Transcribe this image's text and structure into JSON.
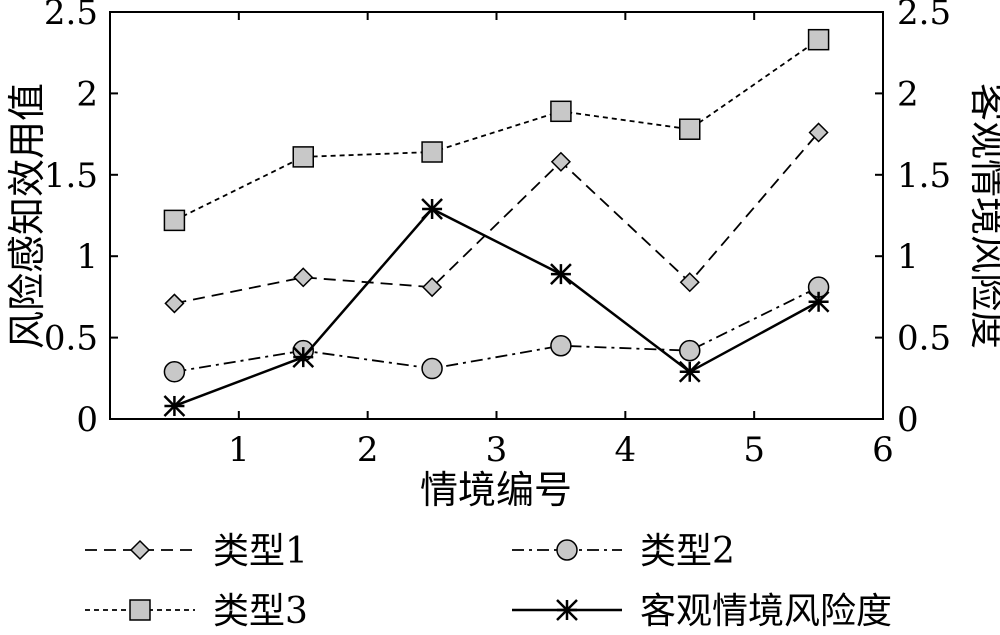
{
  "chart_data": {
    "type": "line",
    "xlabel": "情境编号",
    "ylabel_left": "风险感知效用值",
    "ylabel_right": "客观情境风险度",
    "xlim": [
      0,
      6
    ],
    "ylim": [
      0,
      2.5
    ],
    "x_ticks": [
      "1",
      "2",
      "3",
      "4",
      "5",
      "6"
    ],
    "y_ticks": [
      "0",
      "0.5",
      "1",
      "1.5",
      "2",
      "2.5"
    ],
    "legend_position": "bottom",
    "x": [
      0.5,
      1.5,
      2.5,
      3.5,
      4.5,
      5.5
    ],
    "series": [
      {
        "name": "类型1",
        "axis": "left",
        "values": [
          0.71,
          0.87,
          0.81,
          1.58,
          0.84,
          1.76
        ],
        "line": "dash",
        "marker": "diamond"
      },
      {
        "name": "类型2",
        "axis": "left",
        "values": [
          0.29,
          0.42,
          0.31,
          0.45,
          0.42,
          0.81
        ],
        "line": "dashdot",
        "marker": "circle"
      },
      {
        "name": "类型3",
        "axis": "left",
        "values": [
          1.22,
          1.61,
          1.64,
          1.89,
          1.78,
          2.33
        ],
        "line": "dot",
        "marker": "square"
      },
      {
        "name": "客观情境风险度",
        "axis": "right",
        "values": [
          0.08,
          0.38,
          1.29,
          0.89,
          0.29,
          0.72
        ],
        "line": "solid",
        "marker": "asterisk"
      }
    ]
  }
}
